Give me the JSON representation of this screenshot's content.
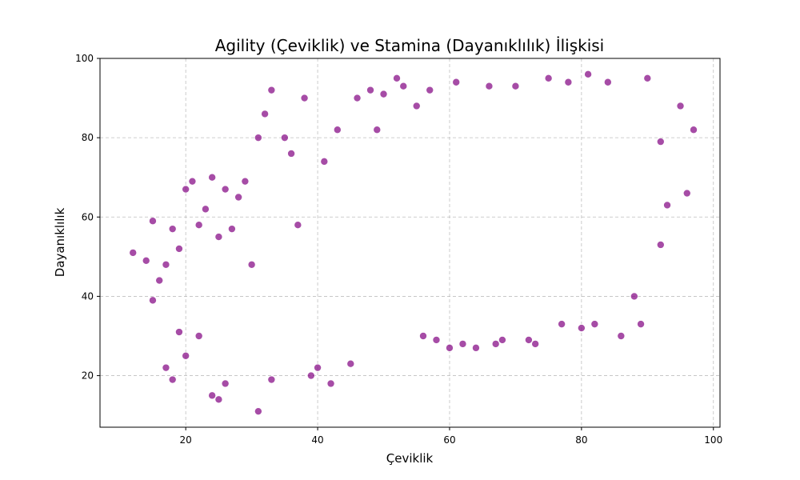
{
  "chart_data": {
    "type": "scatter",
    "title": "Agility (Çeviklik) ve Stamina (Dayanıklılık) İlişkisi",
    "xlabel": "Çeviklik",
    "ylabel": "Dayanıklılık",
    "xlim": [
      7,
      101
    ],
    "ylim": [
      7,
      100
    ],
    "xticks": [
      20,
      40,
      60,
      80,
      100
    ],
    "yticks": [
      20,
      40,
      60,
      80,
      100
    ],
    "grid": true,
    "point_color": "#800080",
    "point_alpha": 0.7,
    "series": [
      {
        "x": [
          12,
          14,
          15,
          15,
          16,
          17,
          17,
          18,
          18,
          19,
          19,
          20,
          20,
          21,
          22,
          22,
          23,
          24,
          24,
          25,
          25,
          26,
          26,
          27,
          28,
          29,
          30,
          31,
          31,
          32,
          33,
          33,
          35,
          36,
          37,
          38,
          39,
          40,
          41,
          42,
          43,
          45,
          46,
          48,
          49,
          50,
          52,
          53,
          55,
          56,
          57,
          58,
          60,
          61,
          62,
          64,
          66,
          67,
          68,
          70,
          72,
          73,
          75,
          77,
          78,
          80,
          81,
          82,
          84,
          86,
          88,
          89,
          90,
          92,
          92,
          93,
          95,
          96,
          97
        ],
        "y": [
          51,
          49,
          59,
          39,
          44,
          48,
          22,
          57,
          19,
          52,
          31,
          67,
          25,
          69,
          30,
          58,
          62,
          70,
          15,
          14,
          55,
          67,
          18,
          57,
          65,
          69,
          48,
          80,
          11,
          86,
          92,
          19,
          80,
          76,
          58,
          90,
          20,
          22,
          74,
          18,
          82,
          23,
          90,
          92,
          82,
          91,
          95,
          93,
          88,
          30,
          92,
          29,
          27,
          94,
          28,
          27,
          93,
          28,
          29,
          93,
          29,
          28,
          95,
          33,
          94,
          32,
          96,
          33,
          94,
          30,
          40,
          33,
          95,
          53,
          79,
          63,
          88,
          66,
          82
        ]
      }
    ]
  }
}
